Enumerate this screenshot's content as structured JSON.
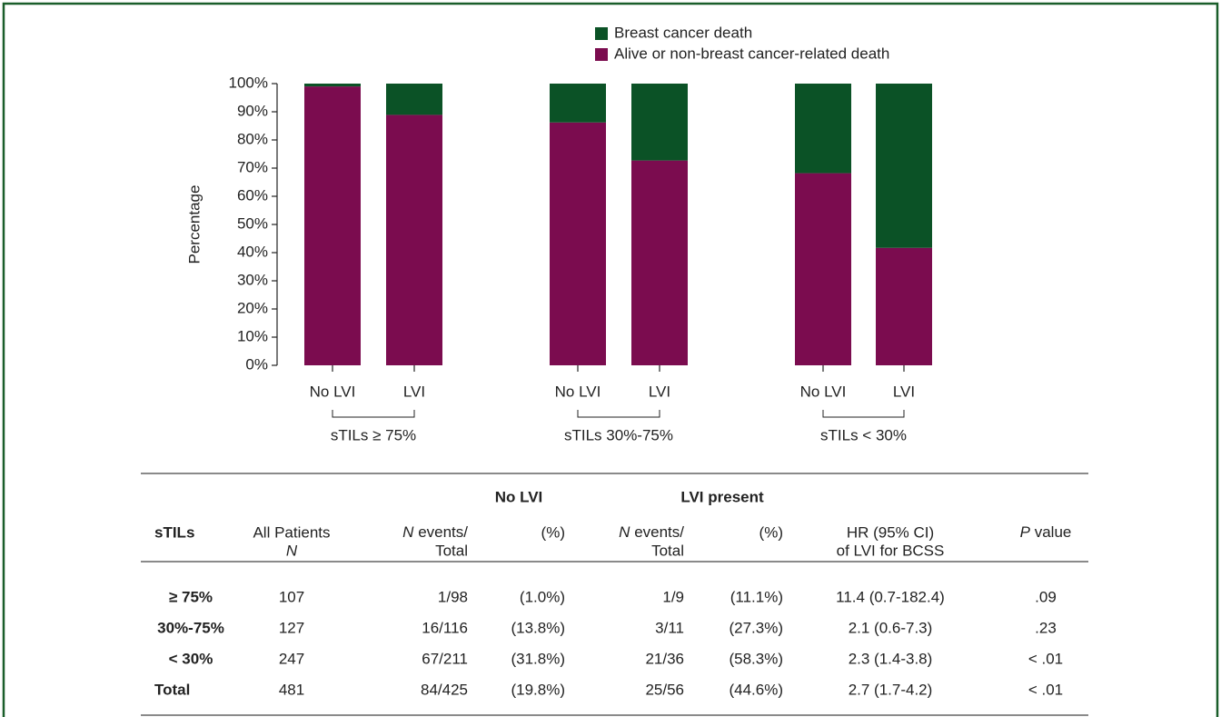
{
  "chart_data": {
    "type": "stacked-bar",
    "y_label": "Percentage",
    "categories": [
      "No LVI",
      "LVI",
      "No LVI",
      "LVI",
      "No LVI",
      "LVI"
    ],
    "groups": [
      "sTILs ≥ 75%",
      "sTILs 30%-75%",
      "sTILs < 30%"
    ],
    "series": [
      {
        "name": "Breast cancer death",
        "color": "#0b5226",
        "values": [
          1.0,
          11.1,
          13.8,
          27.3,
          31.8,
          58.3
        ]
      },
      {
        "name": "Alive or non-breast cancer-related death",
        "color": "#7b0c4f",
        "values": [
          99.0,
          88.9,
          86.2,
          72.7,
          68.2,
          41.7
        ]
      }
    ],
    "ylim": [
      0,
      100
    ],
    "yticks": [
      {
        "value": 0,
        "label": "0%"
      },
      {
        "value": 10,
        "label": "10%"
      },
      {
        "value": 20,
        "label": "20%"
      },
      {
        "value": 30,
        "label": "30%"
      },
      {
        "value": 40,
        "label": "40%"
      },
      {
        "value": 50,
        "label": "50%"
      },
      {
        "value": 60,
        "label": "60%"
      },
      {
        "value": 70,
        "label": "70%"
      },
      {
        "value": 80,
        "label": "80%"
      },
      {
        "value": 90,
        "label": "90%"
      },
      {
        "value": 100,
        "label": "100%"
      }
    ]
  },
  "table": {
    "group_headers": [
      "No LVI",
      "LVI present"
    ],
    "columns": [
      [
        "sTILs"
      ],
      [
        "All Patients",
        "N"
      ],
      [
        "N",
        "events/",
        "Total"
      ],
      [
        "(%)"
      ],
      [
        "N",
        "events/",
        "Total"
      ],
      [
        "(%)"
      ],
      [
        "HR (95% CI)",
        "of LVI for BCSS"
      ],
      [
        "P",
        "value"
      ]
    ],
    "rows": [
      [
        "≥ 75%",
        "107",
        "1/98",
        "(1.0%)",
        "1/9",
        "(11.1%)",
        "11.4 (0.7-182.4)",
        ".09"
      ],
      [
        "30%-75%",
        "127",
        "16/116",
        "(13.8%)",
        "3/11",
        "(27.3%)",
        "2.1 (0.6-7.3)",
        ".23"
      ],
      [
        "< 30%",
        "247",
        "67/211",
        "(31.8%)",
        "21/36",
        "(58.3%)",
        "2.3 (1.4-3.8)",
        "< .01"
      ],
      [
        "Total",
        "481",
        "84/425",
        "(19.8%)",
        "25/56",
        "(44.6%)",
        "2.7 (1.7-4.2)",
        "< .01"
      ]
    ]
  }
}
